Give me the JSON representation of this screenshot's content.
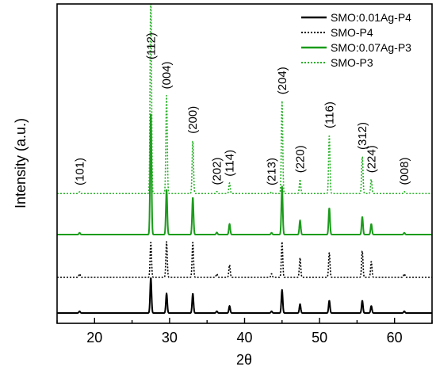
{
  "chart_data": {
    "type": "line",
    "title": "",
    "xlabel": "2θ",
    "ylabel": "Intensity (a.u.)",
    "xlim": [
      15,
      65
    ],
    "x_ticks": [
      20,
      30,
      40,
      50,
      60
    ],
    "x_tick_labels": [
      "20",
      "30",
      "40",
      "50",
      "60"
    ],
    "y_tick_labels": [],
    "grid": false,
    "legend_position": "top-right",
    "peak_annotations": [
      {
        "label": "(101)",
        "x": 18.0
      },
      {
        "label": "(112)",
        "x": 27.5
      },
      {
        "label": "(004)",
        "x": 29.6
      },
      {
        "label": "(200)",
        "x": 33.1
      },
      {
        "label": "(202)",
        "x": 36.3
      },
      {
        "label": "(114)",
        "x": 38.0
      },
      {
        "label": "(213)",
        "x": 43.6
      },
      {
        "label": "(204)",
        "x": 45.0
      },
      {
        "label": "(220)",
        "x": 47.4
      },
      {
        "label": "(116)",
        "x": 51.3
      },
      {
        "label": "(312)",
        "x": 55.7
      },
      {
        "label": "(224)",
        "x": 56.9
      },
      {
        "label": "(008)",
        "x": 61.3
      }
    ],
    "series": [
      {
        "name": "SMO:0.01Ag-P4",
        "color": "#000000",
        "dash": "solid",
        "offset": 0.0,
        "baseline": 0.0,
        "peaks": [
          [
            18.0,
            0.05
          ],
          [
            27.5,
            1.0
          ],
          [
            29.6,
            0.55
          ],
          [
            33.1,
            0.55
          ],
          [
            36.3,
            0.05
          ],
          [
            38.0,
            0.2
          ],
          [
            43.6,
            0.05
          ],
          [
            45.0,
            0.65
          ],
          [
            47.4,
            0.25
          ],
          [
            51.3,
            0.35
          ],
          [
            55.7,
            0.35
          ],
          [
            56.9,
            0.2
          ],
          [
            61.3,
            0.05
          ]
        ]
      },
      {
        "name": "SMO-P4",
        "color": "#000000",
        "dash": "dotted",
        "offset": 1.0,
        "baseline": 0.0,
        "peaks": [
          [
            18.0,
            0.1
          ],
          [
            27.5,
            1.0
          ],
          [
            29.6,
            1.0
          ],
          [
            33.1,
            1.0
          ],
          [
            36.3,
            0.1
          ],
          [
            38.0,
            0.35
          ],
          [
            43.6,
            0.1
          ],
          [
            45.0,
            1.0
          ],
          [
            47.4,
            0.55
          ],
          [
            51.3,
            0.7
          ],
          [
            55.7,
            0.75
          ],
          [
            56.9,
            0.45
          ],
          [
            61.3,
            0.1
          ]
        ]
      },
      {
        "name": "SMO:0.07Ag-P3",
        "color": "#1a9c1a",
        "dash": "solid",
        "offset": 2.2,
        "baseline": 0.0,
        "peaks": [
          [
            18.0,
            0.05
          ],
          [
            27.5,
            3.45
          ],
          [
            29.6,
            1.25
          ],
          [
            33.1,
            1.05
          ],
          [
            36.3,
            0.06
          ],
          [
            38.0,
            0.3
          ],
          [
            43.6,
            0.05
          ],
          [
            45.0,
            1.35
          ],
          [
            47.4,
            0.4
          ],
          [
            51.3,
            0.75
          ],
          [
            55.7,
            0.5
          ],
          [
            56.9,
            0.3
          ],
          [
            61.3,
            0.05
          ]
        ]
      },
      {
        "name": "SMO-P3",
        "color": "#27b027",
        "dash": "dotted",
        "offset": 3.35,
        "baseline": 0.0,
        "peaks": [
          [
            18.0,
            0.05
          ],
          [
            27.5,
            6.0
          ],
          [
            29.6,
            2.75
          ],
          [
            33.1,
            1.5
          ],
          [
            36.3,
            0.06
          ],
          [
            38.0,
            0.3
          ],
          [
            43.6,
            0.05
          ],
          [
            45.0,
            2.6
          ],
          [
            47.4,
            0.4
          ],
          [
            51.3,
            1.65
          ],
          [
            55.7,
            1.05
          ],
          [
            56.9,
            0.4
          ],
          [
            61.3,
            0.06
          ]
        ]
      }
    ]
  }
}
